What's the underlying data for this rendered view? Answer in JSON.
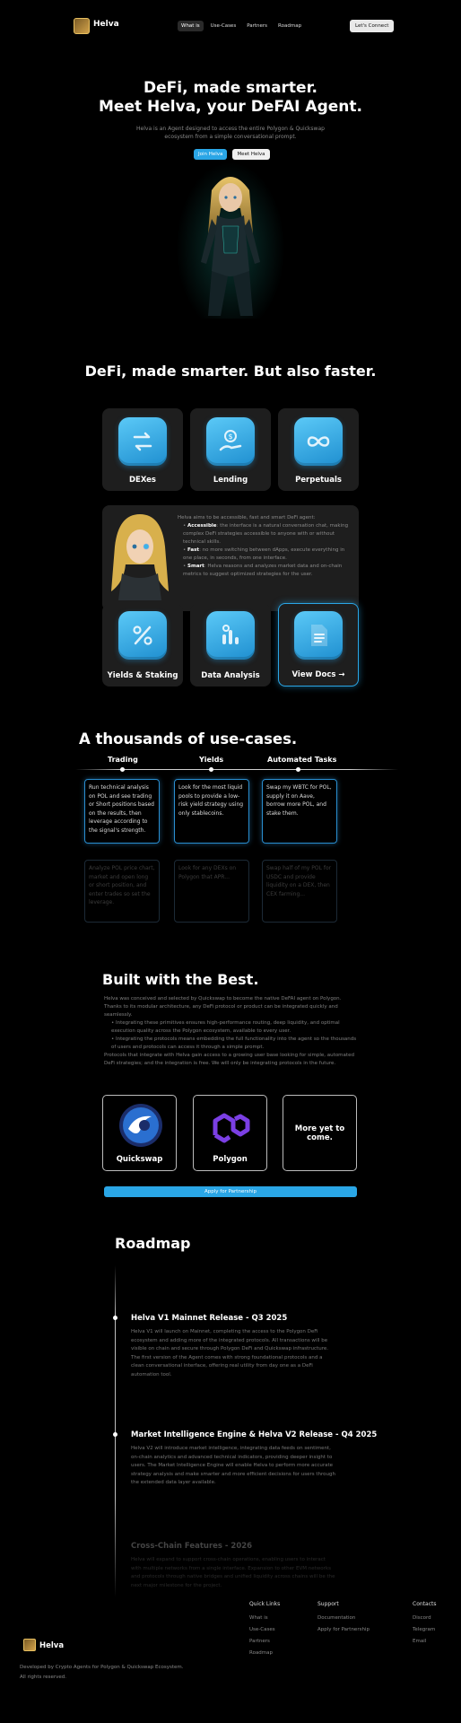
{
  "nav": {
    "brand": "Helva",
    "links": [
      "What is",
      "Use-Cases",
      "Partners",
      "Roadmap"
    ],
    "cta": "Let's Connect"
  },
  "hero": {
    "title_line1": "DeFi, made smarter.",
    "title_line2": "Meet Helva, your DeFAI Agent.",
    "subtitle": "Helva is an Agent designed to access the entire Polygon & Quickswap ecosystem from a simple conversational prompt.",
    "btn_primary": "Join Helva",
    "btn_secondary": "Meet Helva"
  },
  "features": {
    "title": "DeFi, made smarter. But also faster.",
    "cards": [
      {
        "label": "DEXes",
        "icon": "exchange-icon"
      },
      {
        "label": "Lending",
        "icon": "lending-icon"
      },
      {
        "label": "Perpetuals",
        "icon": "infinity-icon"
      }
    ],
    "about_intro": "Helva aims to be accessible, fast and smart DeFi agent:",
    "about_bullets": [
      {
        "k": "Accessible",
        "t": ": the interface is a natural conversation chat, making complex DeFi strategies accessible to anyone with or without technical skills."
      },
      {
        "k": "Fast",
        "t": ": no more switching between dApps, execute everything in one place, in seconds, from one interface."
      },
      {
        "k": "Smart",
        "t": ": Helva reasons and analyzes market data and on-chain metrics to suggest optimized strategies for the user."
      }
    ],
    "cards2": [
      {
        "label": "Yields & Staking",
        "icon": "percent-icon"
      },
      {
        "label": "Data Analysis",
        "icon": "chart-icon"
      },
      {
        "label": "View Docs →",
        "icon": "document-icon"
      }
    ]
  },
  "usecases": {
    "title": "A thousands of use-cases.",
    "tabs": [
      "Trading",
      "Yields",
      "Automated Tasks"
    ],
    "row1": [
      "Run technical analysis on POL and see trading or Short positions based on the results, then leverage according to the signal's strength.",
      "Look for the most liquid pools to provide a low-risk yield strategy using only stablecoins.",
      "Swap my WBTC for POL, supply it on Aave, borrow more POL, and stake them."
    ],
    "row2": [
      "Analyze POL price chart, market and open long or short position, and enter trades so set the leverage.",
      "Look for any DEXs on Polygon that APR...",
      "Swap half of my POL for USDC and provide liquidity on a DEX, then CEX farming..."
    ]
  },
  "built": {
    "title": "Built with the Best.",
    "intro": "Helva was conceived and selected by Quickswap to become the native DeFAI agent on Polygon. Thanks to its modular architecture, any DeFi protocol or product can be integrated quickly and seamlessly.",
    "bullets": [
      "Integrating these primitives ensures high-performance routing, deep liquidity, and optimal execution quality across the Polygon ecosystem, available to every user.",
      "Integrating the protocols means embedding the full functionality into the agent so the thousands of users and protocols can access it through a simple prompt."
    ],
    "outro": "Protocols that integrate with Helva gain access to a growing user base looking for simple, automated DeFi strategies; and the integration is free. We will only be integrating protocols in the future.",
    "partners": [
      {
        "label": "Quickswap",
        "icon": "quickswap-logo"
      },
      {
        "label": "Polygon",
        "icon": "polygon-logo"
      },
      {
        "label": "More yet to come.",
        "icon": ""
      }
    ],
    "apply": "Apply for Partnership"
  },
  "roadmap": {
    "title": "Roadmap",
    "items": [
      {
        "title": "Helva V1 Mainnet Release - Q3 2025",
        "text": "Helva V1 will launch on Mainnet, completing the access to the Polygon DeFi ecosystem and adding more of the integrated protocols. All transactions will be visible on chain and secure through Polygon DeFi and Quickswap infrastructure. The first version of the Agent comes with strong foundational protocols and a clean conversational interface, offering real utility from day one as a DeFi automation tool."
      },
      {
        "title": "Market Intelligence Engine & Helva V2 Release - Q4 2025",
        "text": "Helva V2 will introduce market intelligence, integrating data feeds on sentiment, on-chain analytics and advanced technical indicators, providing deeper insight to users. The Market Intelligence Engine will enable Helva to perform more accurate strategy analysis and make smarter and more efficient decisions for users through the extended data layer available."
      },
      {
        "title": "Cross-Chain Features - 2026",
        "text": "Helva will expand to support cross-chain operations, enabling users to interact with multiple networks from a single interface. Expansion to other EVM networks and protocols through native bridges and unified liquidity across chains will be the next major milestone for the project."
      }
    ]
  },
  "footer": {
    "brand": "Helva",
    "desc": "Developed by Crypto Agents for Polygon & Quickswap Ecosystem.",
    "rights": "All rights reserved.",
    "quick_links": {
      "head": "Quick Links",
      "items": [
        "What is",
        "Use-Cases",
        "Partners",
        "Roadmap"
      ]
    },
    "support": {
      "head": "Support",
      "items": [
        "Documentation",
        "Apply for Partnership"
      ]
    },
    "contacts": {
      "head": "Contacts",
      "items": [
        "Discord",
        "Telegram",
        "Email"
      ]
    }
  },
  "colors": {
    "accent": "#2aa6e6",
    "background": "#000000",
    "card": "#1e1e1e"
  }
}
